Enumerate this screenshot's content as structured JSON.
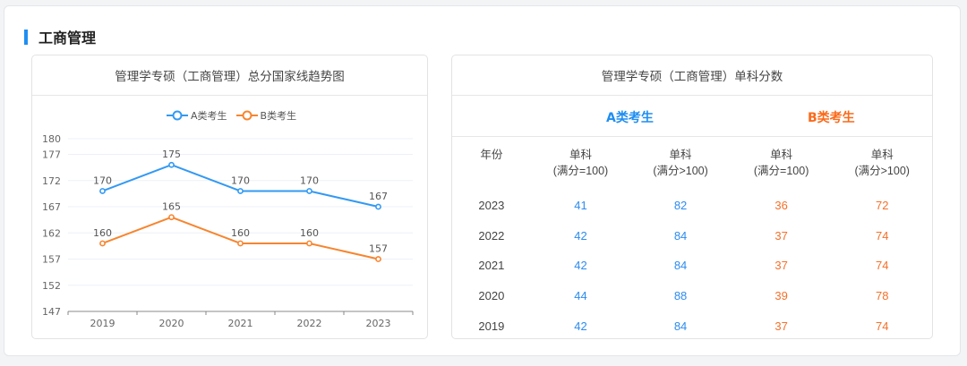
{
  "section": {
    "title": "工商管理",
    "accent_color": "#1f8ef1"
  },
  "left_panel": {
    "title": "管理学专硕（工商管理）总分国家线趋势图",
    "legend": [
      {
        "label": "A类考生",
        "color": "#3399f3"
      },
      {
        "label": "B类考生",
        "color": "#f7852f"
      }
    ]
  },
  "chart_data": {
    "type": "line",
    "title": "管理学专硕（工商管理）总分国家线趋势图",
    "categories": [
      "2019",
      "2020",
      "2021",
      "2022",
      "2023"
    ],
    "series": [
      {
        "name": "A类考生",
        "values": [
          170,
          175,
          170,
          170,
          167
        ],
        "color": "#3399f3"
      },
      {
        "name": "B类考生",
        "values": [
          160,
          165,
          160,
          160,
          157
        ],
        "color": "#f7852f"
      }
    ],
    "xlabel": "",
    "ylabel": "",
    "yticks": [
      147,
      152,
      157,
      162,
      167,
      172,
      177,
      180
    ],
    "ylim": [
      147,
      180
    ],
    "grid": true,
    "legend_position": "top",
    "data_labels": true
  },
  "right_panel": {
    "title": "管理学专硕（工商管理）单科分数",
    "group_a": "A类考生",
    "group_b": "B类考生",
    "group_a_color": "#1f8ef1",
    "group_b_color": "#fa6a1a",
    "columns": [
      {
        "line1": "年份",
        "line2": ""
      },
      {
        "line1": "单科",
        "line2": "(满分=100)"
      },
      {
        "line1": "单科",
        "line2": "(满分>100)"
      },
      {
        "line1": "单科",
        "line2": "(满分=100)"
      },
      {
        "line1": "单科",
        "line2": "(满分>100)"
      }
    ],
    "rows": [
      {
        "year": "2023",
        "a100": "41",
        "a_over": "82",
        "b100": "36",
        "b_over": "72"
      },
      {
        "year": "2022",
        "a100": "42",
        "a_over": "84",
        "b100": "37",
        "b_over": "74"
      },
      {
        "year": "2021",
        "a100": "42",
        "a_over": "84",
        "b100": "37",
        "b_over": "74"
      },
      {
        "year": "2020",
        "a100": "44",
        "a_over": "88",
        "b100": "39",
        "b_over": "78"
      },
      {
        "year": "2019",
        "a100": "42",
        "a_over": "84",
        "b100": "37",
        "b_over": "74"
      }
    ]
  }
}
